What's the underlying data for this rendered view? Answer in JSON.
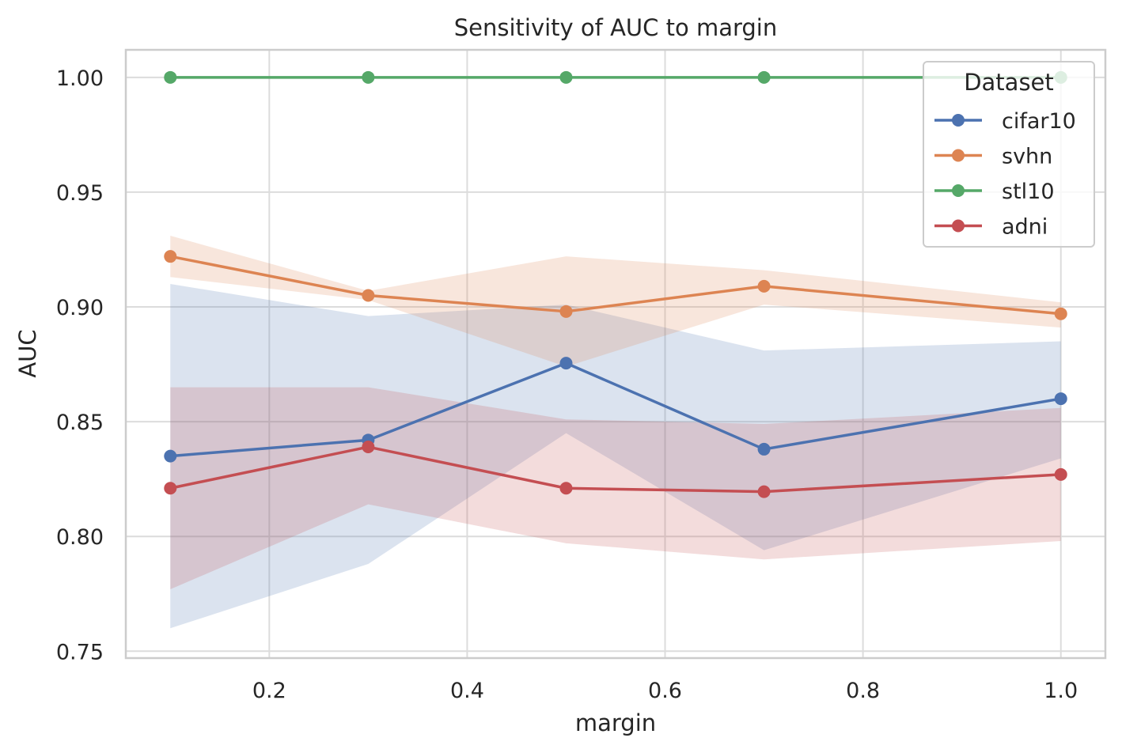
{
  "chart_data": {
    "type": "line",
    "title": "Sensitivity of AUC to margin",
    "xlabel": "margin",
    "ylabel": "AUC",
    "x": [
      0.1,
      0.3,
      0.5,
      0.7,
      1.0
    ],
    "xlim": [
      0.055,
      1.045
    ],
    "ylim": [
      0.747,
      1.012
    ],
    "xticks": [
      0.2,
      0.4,
      0.6,
      0.8,
      1.0
    ],
    "xtick_labels": [
      "0.2",
      "0.4",
      "0.6",
      "0.8",
      "1.0"
    ],
    "yticks": [
      0.75,
      0.8,
      0.85,
      0.9,
      0.95,
      1.0
    ],
    "ytick_labels": [
      "0.75",
      "0.80",
      "0.85",
      "0.90",
      "0.95",
      "1.00"
    ],
    "grid": true,
    "legend": {
      "title": "Dataset",
      "placement": "top-right"
    },
    "series": [
      {
        "name": "cifar10",
        "color": "#4c72b0",
        "values": [
          0.835,
          0.842,
          0.8755,
          0.838,
          0.86
        ],
        "lower": [
          0.76,
          0.788,
          0.845,
          0.794,
          0.834
        ],
        "upper": [
          0.91,
          0.896,
          0.901,
          0.881,
          0.885
        ]
      },
      {
        "name": "svhn",
        "color": "#dd8452",
        "values": [
          0.922,
          0.905,
          0.898,
          0.909,
          0.897
        ],
        "lower": [
          0.913,
          0.903,
          0.874,
          0.901,
          0.891
        ],
        "upper": [
          0.931,
          0.907,
          0.922,
          0.916,
          0.902
        ]
      },
      {
        "name": "stl10",
        "color": "#55a868",
        "values": [
          1.0,
          1.0,
          1.0,
          1.0,
          1.0
        ],
        "lower": [
          1.0,
          1.0,
          1.0,
          1.0,
          1.0
        ],
        "upper": [
          1.0,
          1.0,
          1.0,
          1.0,
          1.0
        ]
      },
      {
        "name": "adni",
        "color": "#c44e52",
        "values": [
          0.821,
          0.839,
          0.821,
          0.8195,
          0.827
        ],
        "lower": [
          0.777,
          0.814,
          0.797,
          0.79,
          0.798
        ],
        "upper": [
          0.865,
          0.865,
          0.851,
          0.849,
          0.856
        ]
      }
    ]
  }
}
